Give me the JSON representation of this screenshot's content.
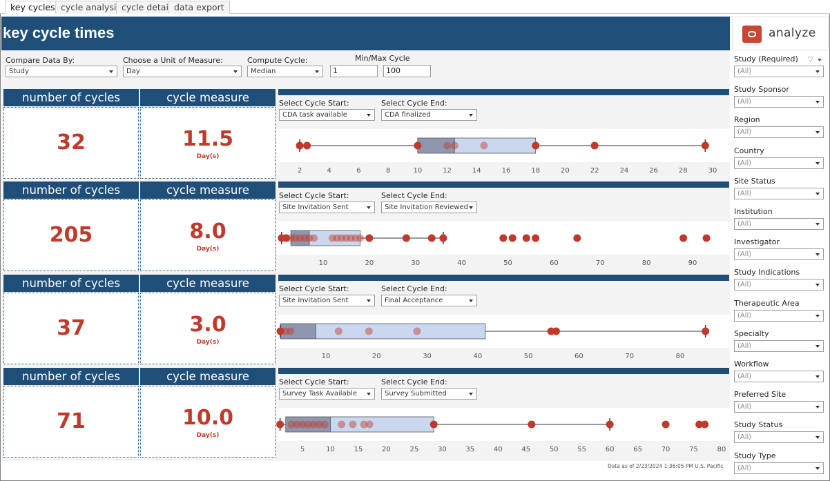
{
  "tabs": [
    {
      "label": "key cycles",
      "active": true
    },
    {
      "label": "cycle analysis",
      "active": false
    },
    {
      "label": "cycle detail",
      "active": false
    },
    {
      "label": "data export",
      "active": false
    }
  ],
  "header": {
    "title": "key cycle times"
  },
  "brand": {
    "label": "analyze",
    "logo_icon": "oracle-logo-icon",
    "color": "#c74634"
  },
  "colors": {
    "navy": "#1f4e79",
    "red": "#c0392b",
    "box": "#c9d8ef",
    "boxDark": "#8f97b0"
  },
  "controls": {
    "compare_label": "Compare Data By:",
    "compare_value": "Study",
    "unit_label": "Choose a Unit of Measure:",
    "unit_value": "Day",
    "compute_label": "Compute Cycle:",
    "compute_value": "Median",
    "minmax_label": "Min/Max Cycle",
    "min_value": "1",
    "max_value": "100"
  },
  "labels": {
    "number_of_cycles": "number of cycles",
    "cycle_measure": "cycle measure",
    "select_start": "Select Cycle Start:",
    "select_end": "Select Cycle End:"
  },
  "rows": [
    {
      "count": "32",
      "measure": "11.5",
      "unit": "Day(s)",
      "start": "CDA task available",
      "end": "CDA finalized",
      "chart_data": {
        "type": "box-plot",
        "ticks": [
          2,
          4,
          6,
          8,
          10,
          12,
          14,
          16,
          18,
          20,
          22,
          24,
          26,
          28,
          30
        ],
        "min": 2,
        "q1": 10,
        "median": 12.5,
        "q3": 18,
        "whisker_low": 2,
        "whisker_high": 29.5,
        "points_dark": [
          2,
          2.5,
          10,
          18,
          22,
          29.5
        ],
        "points_light": [
          12,
          12.5,
          14.5
        ]
      }
    },
    {
      "count": "205",
      "measure": "8.0",
      "unit": "Day(s)",
      "start": "Site Invitation Sent",
      "end": "Site Invitation Reviewed",
      "chart_data": {
        "type": "box-plot",
        "ticks": [
          10,
          20,
          30,
          40,
          50,
          60,
          70,
          80,
          90
        ],
        "q1": 3,
        "median": 7,
        "q3": 18,
        "whisker_low": 1,
        "whisker_high": 36,
        "points_dark": [
          1,
          2,
          20,
          28,
          33.5,
          36,
          49,
          51,
          54,
          56,
          65,
          88,
          93
        ],
        "points_light": [
          3,
          4,
          5,
          6,
          7,
          8,
          12,
          13,
          14,
          15,
          16,
          17,
          18
        ]
      }
    },
    {
      "count": "37",
      "measure": "3.0",
      "unit": "Day(s)",
      "start": "Site Invitation Sent",
      "end": "Final Acceptance",
      "chart_data": {
        "type": "box-plot",
        "ticks": [
          10,
          20,
          30,
          40,
          50,
          60,
          70,
          80
        ],
        "q1": 1,
        "median": 8,
        "q3": 41.5,
        "whisker_low": 1,
        "whisker_high": 85,
        "points_dark": [
          1,
          54.5,
          55.5,
          85
        ],
        "points_light": [
          2,
          3,
          12.5,
          18.5,
          28
        ]
      }
    },
    {
      "count": "71",
      "measure": "10.0",
      "unit": "Day(s)",
      "start": "Survey Task Available",
      "end": "Survey Submitted",
      "chart_data": {
        "type": "box-plot",
        "ticks": [
          5,
          10,
          15,
          20,
          25,
          30,
          35,
          40,
          45,
          50,
          55,
          60,
          65,
          70,
          75,
          80
        ],
        "q1": 2,
        "median": 10,
        "q3": 28.5,
        "whisker_low": 1,
        "whisker_high": 60,
        "points_dark": [
          1,
          28.5,
          46,
          60,
          70,
          76,
          77
        ],
        "points_light": [
          3,
          4,
          5,
          6,
          7,
          8,
          9,
          12,
          14,
          16,
          17
        ]
      }
    }
  ],
  "footer": {
    "note": "Data as of 2/23/2024 1:36:05 PM U.S. Pacific"
  },
  "filters": [
    {
      "label": "Study (Required)",
      "value": "(All)"
    },
    {
      "label": "Study Sponsor",
      "value": "(All)"
    },
    {
      "label": "Region",
      "value": "(All)"
    },
    {
      "label": "Country",
      "value": "(All)"
    },
    {
      "label": "Site Status",
      "value": "(All)"
    },
    {
      "label": "Institution",
      "value": "(All)"
    },
    {
      "label": "Investigator",
      "value": "(All)"
    },
    {
      "label": "Study Indications",
      "value": "(All)"
    },
    {
      "label": "Therapeutic Area",
      "value": "(All)"
    },
    {
      "label": "Specialty",
      "value": "(All)"
    },
    {
      "label": "Workflow",
      "value": "(All)"
    },
    {
      "label": "Preferred Site",
      "value": "(All)"
    },
    {
      "label": "Study Status",
      "value": "(All)"
    },
    {
      "label": "Study Type",
      "value": "(All)"
    }
  ]
}
